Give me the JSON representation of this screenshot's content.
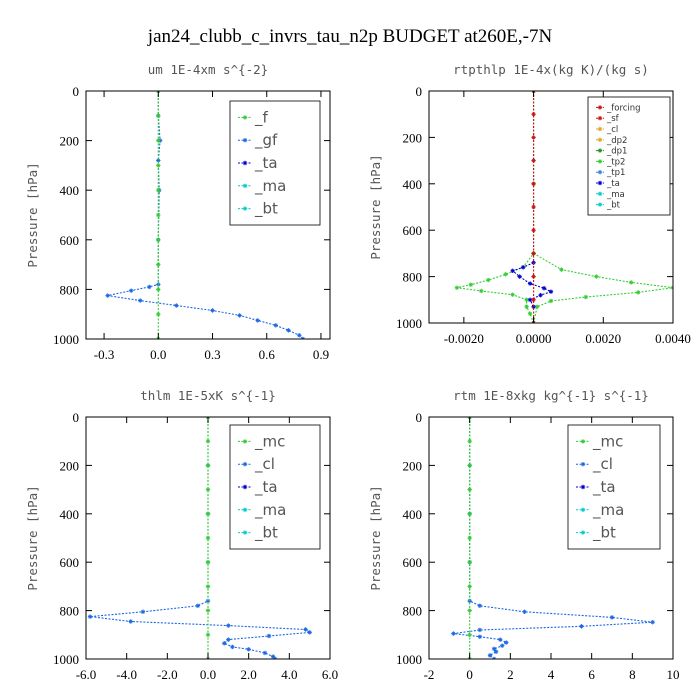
{
  "suptitle": "jan24_clubb_c_invrs_tau_n2p  BUDGET at260E,-7N",
  "colors": {
    "green": "#33cc33",
    "blue": "#1a66e6",
    "red": "#cc1111",
    "navy": "#0000cc",
    "cyan": "#00cccc",
    "orange": "#e6a020",
    "darkgreen": "#228b22",
    "steel": "#3a7fd0"
  },
  "chart_data": [
    {
      "type": "line",
      "title": "um   1E-4xm s^{-2}",
      "ylabel": "Pressure [hPa]",
      "xlim": [
        -0.4,
        0.95
      ],
      "ylim": [
        1000,
        0
      ],
      "xticks": [
        -0.3,
        0.0,
        0.3,
        0.6,
        0.9
      ],
      "xtick_labels": [
        "-0.3",
        "0.0",
        "0.3",
        "0.6",
        "0.9"
      ],
      "yticks": [
        0,
        200,
        400,
        600,
        800,
        1000
      ],
      "ytick_labels": [
        "0",
        "200",
        "400",
        "600",
        "800",
        "1000"
      ],
      "legend_placement": "top-right",
      "legend_style": "big",
      "legend": [
        {
          "label": "_f",
          "color": "#33cc33"
        },
        {
          "label": "_gf",
          "color": "#1a66e6"
        },
        {
          "label": "_ta",
          "color": "#0000cc"
        },
        {
          "label": "_ma",
          "color": "#00cccc"
        },
        {
          "label": "_bt",
          "color": "#00cccc"
        }
      ],
      "series": [
        {
          "color": "#1a66e6",
          "points": [
            [
              0.0,
              0
            ],
            [
              0.0,
              100
            ],
            [
              0.01,
              200
            ],
            [
              0.0,
              280
            ],
            [
              0.005,
              400
            ],
            [
              0.0,
              600
            ],
            [
              0.0,
              780
            ],
            [
              -0.05,
              790
            ],
            [
              -0.15,
              805
            ],
            [
              -0.28,
              825
            ],
            [
              -0.1,
              845
            ],
            [
              0.1,
              865
            ],
            [
              0.3,
              885
            ],
            [
              0.45,
              905
            ],
            [
              0.55,
              925
            ],
            [
              0.65,
              945
            ],
            [
              0.72,
              965
            ],
            [
              0.78,
              985
            ],
            [
              0.8,
              1000
            ]
          ]
        },
        {
          "color": "#33cc33",
          "points": [
            [
              0.0,
              0
            ],
            [
              0.0,
              100
            ],
            [
              0.0,
              200
            ],
            [
              0.0,
              300
            ],
            [
              0.0,
              400
            ],
            [
              0.0,
              500
            ],
            [
              0.0,
              600
            ],
            [
              0.0,
              700
            ],
            [
              0.0,
              800
            ],
            [
              0.0,
              900
            ],
            [
              0.0,
              1000
            ]
          ]
        }
      ]
    },
    {
      "type": "line",
      "title": "rtpthlp   1E-4x(kg K)/(kg s)",
      "ylabel": "Pressure [hPa]",
      "xlim": [
        -0.003,
        0.004
      ],
      "ylim": [
        1000,
        0
      ],
      "xticks": [
        -0.002,
        0.0,
        0.002,
        0.004
      ],
      "xtick_labels": [
        "-0.0020",
        "0.0000",
        "0.0020",
        "0.0040"
      ],
      "yticks": [
        0,
        200,
        400,
        600,
        800,
        1000
      ],
      "ytick_labels": [
        "0",
        "200",
        "400",
        "600",
        "800",
        "1000"
      ],
      "legend_placement": "top-right",
      "legend_style": "small",
      "legend": [
        {
          "label": "_forcing",
          "color": "#cc1111"
        },
        {
          "label": "_sf",
          "color": "#cc1111"
        },
        {
          "label": "_cl",
          "color": "#e6a020"
        },
        {
          "label": "_dp2",
          "color": "#e6a020"
        },
        {
          "label": "_dp1",
          "color": "#228b22"
        },
        {
          "label": "_tp2",
          "color": "#33cc33"
        },
        {
          "label": "_tp1",
          "color": "#3a7fd0"
        },
        {
          "label": "_ta",
          "color": "#0000cc"
        },
        {
          "label": "_ma",
          "color": "#00cccc"
        },
        {
          "label": "_bt",
          "color": "#00cccc"
        }
      ],
      "series": [
        {
          "color": "#33cc33",
          "points": [
            [
              0.0,
              0
            ],
            [
              0.0,
              400
            ],
            [
              0.0,
              700
            ],
            [
              -0.0003,
              760
            ],
            [
              -0.0008,
              790
            ],
            [
              -0.0013,
              815
            ],
            [
              -0.0018,
              835
            ],
            [
              -0.0022,
              848
            ],
            [
              -0.0015,
              862
            ],
            [
              -0.0006,
              878
            ],
            [
              -0.0002,
              900
            ],
            [
              -0.0002,
              930
            ],
            [
              -0.0001,
              960
            ],
            [
              0.0,
              1000
            ]
          ]
        },
        {
          "color": "#33cc33",
          "points": [
            [
              0.0,
              700
            ],
            [
              0.0008,
              770
            ],
            [
              0.0018,
              800
            ],
            [
              0.0028,
              825
            ],
            [
              0.004,
              848
            ],
            [
              0.003,
              868
            ],
            [
              0.0015,
              888
            ],
            [
              0.0005,
              905
            ],
            [
              0.0001,
              930
            ],
            [
              0.0,
              1000
            ]
          ]
        },
        {
          "color": "#0000cc",
          "points": [
            [
              0.0,
              740
            ],
            [
              -0.0003,
              760
            ],
            [
              -0.0006,
              775
            ],
            [
              -0.0004,
              800
            ],
            [
              -0.0001,
              830
            ],
            [
              0.0003,
              850
            ],
            [
              0.0005,
              865
            ],
            [
              0.0002,
              880
            ],
            [
              -0.0001,
              900
            ],
            [
              0.0,
              930
            ]
          ]
        },
        {
          "color": "#cc1111",
          "points": [
            [
              0.0,
              0
            ],
            [
              0.0,
              100
            ],
            [
              0.0,
              200
            ],
            [
              0.0,
              300
            ],
            [
              0.0,
              400
            ],
            [
              0.0,
              500
            ],
            [
              0.0,
              600
            ],
            [
              0.0,
              700
            ],
            [
              0.0,
              800
            ],
            [
              0.0,
              900
            ],
            [
              0.0,
              1000
            ]
          ]
        }
      ]
    },
    {
      "type": "line",
      "title": "thlm   1E-5xK s^{-1}",
      "ylabel": "Pressure [hPa]",
      "xlim": [
        -6.0,
        6.0
      ],
      "ylim": [
        1000,
        0
      ],
      "xticks": [
        -6.0,
        -4.0,
        -2.0,
        0.0,
        2.0,
        4.0,
        6.0
      ],
      "xtick_labels": [
        "-6.0",
        "-4.0",
        "-2.0",
        "0.0",
        "2.0",
        "4.0",
        "6.0"
      ],
      "yticks": [
        0,
        200,
        400,
        600,
        800,
        1000
      ],
      "ytick_labels": [
        "0",
        "200",
        "400",
        "600",
        "800",
        "1000"
      ],
      "legend_placement": "top-right",
      "legend_style": "big",
      "legend": [
        {
          "label": "_mc",
          "color": "#33cc33"
        },
        {
          "label": "_cl",
          "color": "#1a66e6"
        },
        {
          "label": "_ta",
          "color": "#0000cc"
        },
        {
          "label": "_ma",
          "color": "#00cccc"
        },
        {
          "label": "_bt",
          "color": "#00cccc"
        }
      ],
      "series": [
        {
          "color": "#1a66e6",
          "points": [
            [
              0.0,
              0
            ],
            [
              0.0,
              200
            ],
            [
              0.0,
              400
            ],
            [
              0.0,
              600
            ],
            [
              0.0,
              760
            ],
            [
              -0.5,
              780
            ],
            [
              -3.2,
              805
            ],
            [
              -5.8,
              825
            ],
            [
              -3.8,
              845
            ],
            [
              1.0,
              862
            ],
            [
              4.8,
              878
            ],
            [
              5.0,
              890
            ],
            [
              3.0,
              905
            ],
            [
              1.0,
              920
            ],
            [
              0.8,
              935
            ],
            [
              1.2,
              950
            ],
            [
              2.0,
              960
            ],
            [
              2.8,
              975
            ],
            [
              3.2,
              990
            ],
            [
              3.3,
              1000
            ]
          ]
        },
        {
          "color": "#33cc33",
          "points": [
            [
              0.0,
              0
            ],
            [
              0.0,
              100
            ],
            [
              0.0,
              200
            ],
            [
              0.0,
              300
            ],
            [
              0.0,
              400
            ],
            [
              0.0,
              500
            ],
            [
              0.0,
              600
            ],
            [
              0.0,
              700
            ],
            [
              0.0,
              800
            ],
            [
              0.0,
              900
            ],
            [
              0.0,
              1000
            ]
          ]
        }
      ]
    },
    {
      "type": "line",
      "title": "rtm   1E-8xkg kg^{-1} s^{-1}",
      "ylabel": "Pressure [hPa]",
      "xlim": [
        -2,
        10
      ],
      "ylim": [
        1000,
        0
      ],
      "xticks": [
        -2,
        0,
        2,
        4,
        6,
        8,
        10
      ],
      "xtick_labels": [
        "-2",
        "0",
        "2",
        "4",
        "6",
        "8",
        "10"
      ],
      "yticks": [
        0,
        200,
        400,
        600,
        800,
        1000
      ],
      "ytick_labels": [
        "0",
        "200",
        "400",
        "600",
        "800",
        "1000"
      ],
      "legend_placement": "top-right",
      "legend_style": "big",
      "legend": [
        {
          "label": "_mc",
          "color": "#33cc33"
        },
        {
          "label": "_cl",
          "color": "#1a66e6"
        },
        {
          "label": "_ta",
          "color": "#0000cc"
        },
        {
          "label": "_ma",
          "color": "#00cccc"
        },
        {
          "label": "_bt",
          "color": "#00cccc"
        }
      ],
      "series": [
        {
          "color": "#1a66e6",
          "points": [
            [
              0.0,
              0
            ],
            [
              0.0,
              200
            ],
            [
              0.0,
              400
            ],
            [
              0.0,
              600
            ],
            [
              0.0,
              760
            ],
            [
              0.5,
              780
            ],
            [
              2.7,
              805
            ],
            [
              7.0,
              828
            ],
            [
              9.0,
              848
            ],
            [
              5.5,
              865
            ],
            [
              0.5,
              880
            ],
            [
              -0.8,
              895
            ],
            [
              0.5,
              908
            ],
            [
              1.5,
              920
            ],
            [
              1.8,
              932
            ],
            [
              1.6,
              945
            ],
            [
              1.2,
              958
            ],
            [
              1.3,
              970
            ],
            [
              1.0,
              985
            ],
            [
              1.2,
              1000
            ]
          ]
        },
        {
          "color": "#33cc33",
          "points": [
            [
              0.0,
              0
            ],
            [
              0.0,
              100
            ],
            [
              0.0,
              200
            ],
            [
              0.0,
              300
            ],
            [
              0.0,
              400
            ],
            [
              0.0,
              500
            ],
            [
              0.0,
              600
            ],
            [
              0.0,
              700
            ],
            [
              0.0,
              800
            ],
            [
              0.0,
              900
            ],
            [
              0.0,
              1000
            ]
          ]
        }
      ]
    }
  ]
}
